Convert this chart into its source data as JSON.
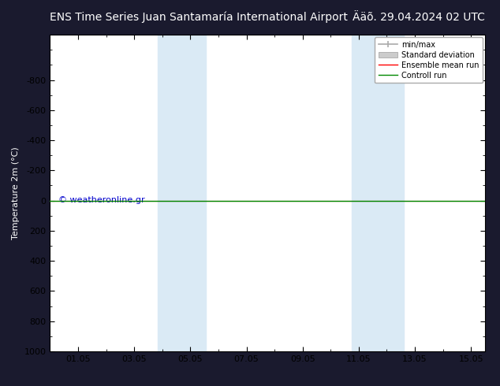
{
  "title_left": "ENS Time Series Juan Santamaría International Airport",
  "title_right": "Ääõ. 29.04.2024 02 UTC",
  "ylabel": "Temperature 2m (°C)",
  "xlim": [
    0.0,
    15.5
  ],
  "ylim": [
    1000,
    -1100
  ],
  "yticks": [
    -800,
    -600,
    -400,
    -200,
    0,
    200,
    400,
    600,
    800,
    1000
  ],
  "xtick_labels": [
    "01.05",
    "03.05",
    "05.05",
    "07.05",
    "09.05",
    "11.05",
    "13.05",
    "15.05"
  ],
  "xtick_positions": [
    1,
    3,
    5,
    7,
    9,
    11,
    13,
    15
  ],
  "shaded_regions": [
    {
      "xmin": 3.85,
      "xmax": 5.55,
      "color": "#daeaf5"
    },
    {
      "xmin": 10.75,
      "xmax": 12.6,
      "color": "#daeaf5"
    }
  ],
  "green_line_y": 0,
  "red_line_y": 0,
  "watermark": "© weatheronline.gr",
  "watermark_color": "#0000cc",
  "background_color": "#1a1a2e",
  "plot_background": "#ffffff",
  "legend_items": [
    {
      "label": "min/max",
      "color": "#aaaaaa"
    },
    {
      "label": "Standard deviation",
      "color": "#cccccc"
    },
    {
      "label": "Ensemble mean run",
      "color": "#ff0000"
    },
    {
      "label": "Controll run",
      "color": "#008800"
    }
  ],
  "title_fontsize": 10,
  "axis_label_fontsize": 8,
  "tick_fontsize": 8,
  "legend_fontsize": 7
}
